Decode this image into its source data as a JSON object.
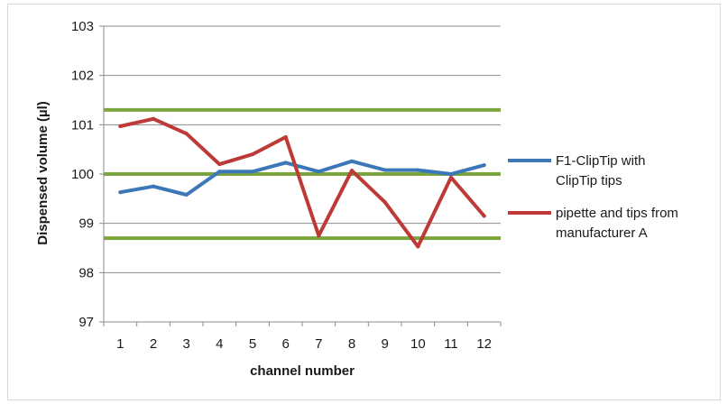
{
  "chart_data": {
    "type": "line",
    "xlabel": "channel number",
    "ylabel": "Dispensed volume (µl)",
    "x": [
      1,
      2,
      3,
      4,
      5,
      6,
      7,
      8,
      9,
      10,
      11,
      12
    ],
    "ylim": [
      97,
      103
    ],
    "yticks": [
      97,
      98,
      99,
      100,
      101,
      102,
      103
    ],
    "grid": true,
    "legend_position": "right",
    "series": [
      {
        "name": "F1-ClipTip with ClipTip tips",
        "legend_lines": [
          "F1-ClipTip with",
          "ClipTip tips"
        ],
        "color": "#3c78b8",
        "values": [
          99.63,
          99.75,
          99.58,
          100.05,
          100.05,
          100.23,
          100.05,
          100.26,
          100.08,
          100.08,
          100.0,
          100.18
        ]
      },
      {
        "name": "pipette and tips from manufacturer A",
        "legend_lines": [
          "pipette and tips from",
          "manufacturer A"
        ],
        "color": "#bd3a38",
        "values": [
          100.97,
          101.12,
          100.82,
          100.2,
          100.4,
          100.75,
          98.75,
          100.07,
          99.43,
          98.53,
          99.93,
          99.15
        ]
      }
    ],
    "reference_lines": {
      "color": "#7aa53c",
      "values": [
        101.3,
        100.0,
        98.7
      ]
    }
  }
}
